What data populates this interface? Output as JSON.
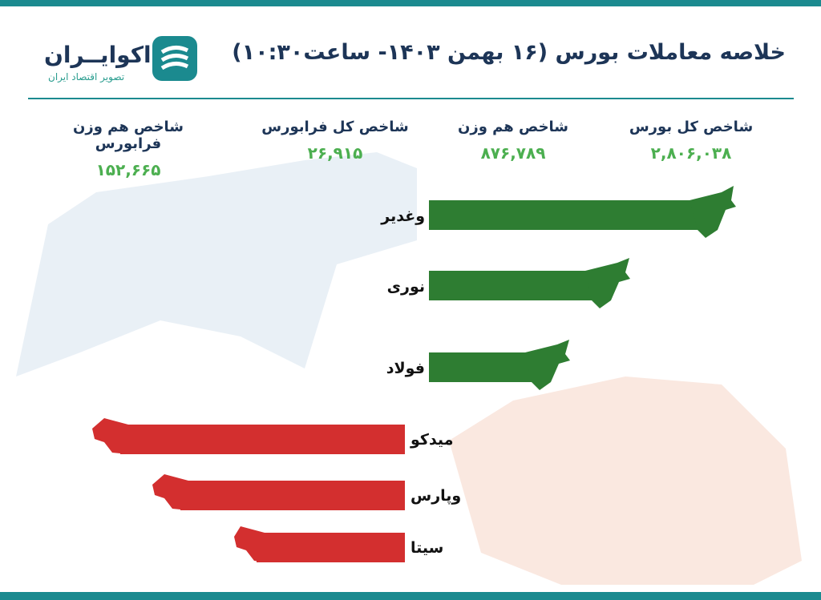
{
  "header": {
    "title": "خلاصه معاملات بورس (۱۶ بهمن ۱۴۰۳- ساعت۱۰:۳۰)",
    "logo_name": "اکوایــران",
    "logo_tagline": "تصویر اقتصاد ایران"
  },
  "indices": [
    {
      "label": "شاخص کل بورس",
      "value": "۲,۸۰۶,۰۳۸"
    },
    {
      "label": "شاخص هم وزن",
      "value": "۸۷۶,۷۸۹"
    },
    {
      "label": "شاخص کل فرابورس",
      "value": "۲۶,۹۱۵"
    },
    {
      "label": "شاخص هم وزن فرابورس",
      "value": "۱۵۲,۶۶۵"
    }
  ],
  "gainers": [
    "وغدیر",
    "نوری",
    "فولاد"
  ],
  "losers": [
    "میدکو",
    "وپارس",
    "سیتا"
  ]
}
